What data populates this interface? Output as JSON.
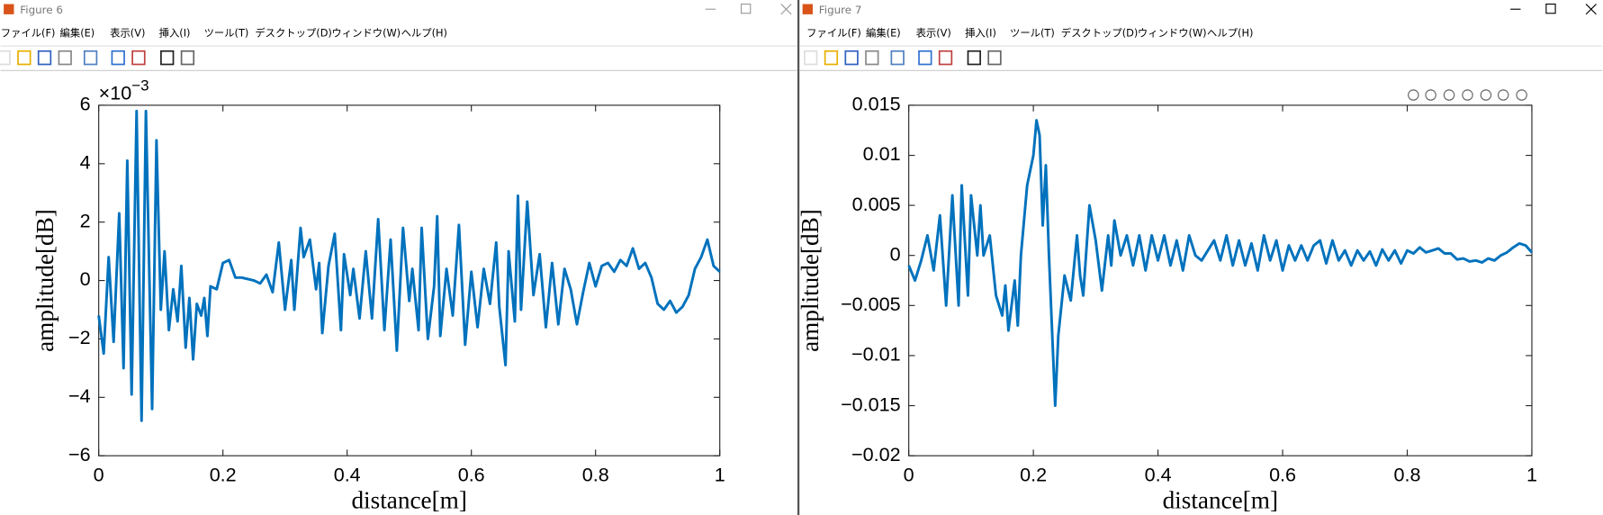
{
  "windows": [
    {
      "title": "Figure 6"
    },
    {
      "title": "Figure 7"
    }
  ],
  "menu": [
    "ファイル(F)",
    "編集(E)",
    "表示(V)",
    "挿入(I)",
    "ツール(T)",
    "デスクトップ(D)",
    "ウィンドウ(W)",
    "ヘルプ(H)"
  ],
  "chart_data": [
    {
      "type": "line",
      "xlabel": "distance[m]",
      "ylabel": "amplitude[dB]",
      "color": "#0072bd",
      "exponent": {
        "base": "×10",
        "power": "−3"
      },
      "xlim": [
        0,
        1
      ],
      "xticks": [
        0,
        0.2,
        0.4,
        0.6,
        0.8,
        1
      ],
      "ylim": [
        -6,
        6
      ],
      "yticks": [
        {
          "value": -6,
          "label": "−6"
        },
        {
          "value": -4,
          "label": "−4"
        },
        {
          "value": -2,
          "label": "−2"
        },
        0,
        2,
        4,
        6
      ],
      "x": [
        0,
        0.008,
        0.016,
        0.024,
        0.033,
        0.04,
        0.046,
        0.053,
        0.061,
        0.069,
        0.076,
        0.086,
        0.093,
        0.1,
        0.106,
        0.113,
        0.12,
        0.127,
        0.133,
        0.14,
        0.146,
        0.152,
        0.158,
        0.165,
        0.17,
        0.175,
        0.18,
        0.19,
        0.2,
        0.21,
        0.22,
        0.23,
        0.25,
        0.26,
        0.27,
        0.28,
        0.29,
        0.3,
        0.31,
        0.315,
        0.325,
        0.33,
        0.34,
        0.35,
        0.355,
        0.36,
        0.37,
        0.38,
        0.39,
        0.395,
        0.405,
        0.41,
        0.42,
        0.43,
        0.44,
        0.45,
        0.46,
        0.47,
        0.48,
        0.49,
        0.5,
        0.505,
        0.515,
        0.52,
        0.53,
        0.54,
        0.545,
        0.55,
        0.56,
        0.57,
        0.58,
        0.59,
        0.6,
        0.61,
        0.62,
        0.63,
        0.64,
        0.645,
        0.655,
        0.66,
        0.67,
        0.675,
        0.68,
        0.69,
        0.7,
        0.71,
        0.72,
        0.73,
        0.74,
        0.75,
        0.76,
        0.77,
        0.78,
        0.79,
        0.8,
        0.81,
        0.82,
        0.83,
        0.84,
        0.85,
        0.86,
        0.87,
        0.88,
        0.89,
        0.9,
        0.91,
        0.92,
        0.93,
        0.94,
        0.95,
        0.96,
        0.97,
        0.98,
        0.99,
        1.0
      ],
      "values": [
        -1.2,
        -2.5,
        0.8,
        -2.1,
        2.3,
        -3.0,
        4.1,
        -3.9,
        5.8,
        -4.8,
        5.8,
        -4.4,
        4.8,
        -1.0,
        1.0,
        -1.7,
        -0.3,
        -1.4,
        0.5,
        -2.3,
        -0.6,
        -2.7,
        -0.8,
        -1.2,
        -0.6,
        -1.9,
        -0.2,
        -0.3,
        0.6,
        0.7,
        0.1,
        0.1,
        0,
        -0.1,
        0.2,
        -0.4,
        1.3,
        -1.0,
        0.7,
        -1.0,
        1.8,
        0.8,
        1.4,
        -0.3,
        0.6,
        -1.8,
        0.5,
        1.6,
        -1.7,
        0.9,
        -0.5,
        0.4,
        -1.3,
        1.0,
        -1.3,
        2.1,
        -1.7,
        1.4,
        -2.4,
        1.8,
        -0.7,
        0.4,
        -1.7,
        1.8,
        -2.0,
        -0.2,
        2.2,
        -1.9,
        0.4,
        -1.2,
        1.9,
        -2.2,
        0.3,
        -1.6,
        0.4,
        -0.8,
        1.3,
        -0.9,
        -2.9,
        1.0,
        -1.4,
        2.9,
        -1.0,
        2.7,
        -0.5,
        0.9,
        -1.6,
        0.6,
        -1.5,
        0.4,
        -0.3,
        -1.5,
        -0.4,
        0.6,
        -0.2,
        0.5,
        0.6,
        0.3,
        0.7,
        0.5,
        1.1,
        0.4,
        0.6,
        0.1,
        -0.8,
        -1.0,
        -0.7,
        -1.1,
        -0.9,
        -0.5,
        0.4,
        0.8,
        1.4,
        0.5,
        0.3
      ]
    },
    {
      "type": "line",
      "xlabel": "distance[m]",
      "ylabel": "amplitude[dB]",
      "color": "#0072bd",
      "xlim": [
        0,
        1
      ],
      "xticks": [
        0,
        0.2,
        0.4,
        0.6,
        0.8,
        1
      ],
      "ylim": [
        -0.02,
        0.015
      ],
      "yticks": [
        {
          "value": -0.02,
          "label": "−0.02"
        },
        {
          "value": -0.015,
          "label": "−0.015"
        },
        {
          "value": -0.01,
          "label": "−0.01"
        },
        {
          "value": -0.005,
          "label": "−0.005"
        },
        0,
        0.005,
        0.01,
        0.015
      ],
      "x": [
        0,
        0.01,
        0.02,
        0.03,
        0.04,
        0.05,
        0.06,
        0.07,
        0.08,
        0.085,
        0.095,
        0.1,
        0.11,
        0.115,
        0.12,
        0.13,
        0.14,
        0.15,
        0.155,
        0.16,
        0.17,
        0.175,
        0.18,
        0.19,
        0.2,
        0.205,
        0.21,
        0.215,
        0.22,
        0.225,
        0.23,
        0.235,
        0.24,
        0.25,
        0.26,
        0.27,
        0.275,
        0.28,
        0.29,
        0.3,
        0.31,
        0.32,
        0.325,
        0.33,
        0.34,
        0.35,
        0.36,
        0.37,
        0.38,
        0.39,
        0.4,
        0.41,
        0.42,
        0.43,
        0.44,
        0.45,
        0.46,
        0.47,
        0.48,
        0.49,
        0.5,
        0.51,
        0.52,
        0.53,
        0.54,
        0.55,
        0.56,
        0.57,
        0.58,
        0.59,
        0.6,
        0.61,
        0.62,
        0.63,
        0.64,
        0.65,
        0.66,
        0.67,
        0.68,
        0.69,
        0.7,
        0.71,
        0.72,
        0.73,
        0.74,
        0.75,
        0.76,
        0.77,
        0.78,
        0.79,
        0.8,
        0.81,
        0.82,
        0.83,
        0.84,
        0.85,
        0.86,
        0.87,
        0.88,
        0.89,
        0.9,
        0.91,
        0.92,
        0.93,
        0.94,
        0.95,
        0.96,
        0.97,
        0.98,
        0.99,
        1.0
      ],
      "values": [
        -0.001,
        -0.0025,
        -0.0005,
        0.002,
        -0.0015,
        0.004,
        -0.005,
        0.006,
        -0.005,
        0.007,
        -0.004,
        0.006,
        0,
        0.005,
        0,
        0.002,
        -0.004,
        -0.006,
        -0.003,
        -0.0075,
        -0.0025,
        -0.007,
        0,
        0.007,
        0.01,
        0.0135,
        0.012,
        0.003,
        0.009,
        0,
        -0.0075,
        -0.015,
        -0.008,
        -0.002,
        -0.0045,
        0.002,
        -0.002,
        -0.004,
        0.005,
        0.0015,
        -0.0035,
        0.002,
        -0.001,
        0.0035,
        0,
        0.002,
        -0.001,
        0.002,
        -0.0015,
        0.002,
        -0.0005,
        0.002,
        -0.001,
        0.0015,
        -0.0015,
        0.002,
        0,
        -0.0005,
        0.0005,
        0.0015,
        -0.0005,
        0.002,
        -0.001,
        0.0015,
        -0.001,
        0.0012,
        -0.0015,
        0.002,
        -0.0005,
        0.0015,
        -0.0015,
        0.001,
        -0.0005,
        0.001,
        -0.0005,
        0.001,
        0.0015,
        -0.0008,
        0.0015,
        -0.0005,
        0.0005,
        -0.001,
        0.0005,
        -0.0005,
        0.0004,
        -0.001,
        0.0006,
        -0.0005,
        0.0005,
        -0.0008,
        0.0005,
        0.0002,
        0.0008,
        0.0003,
        0.0005,
        0.0007,
        0.0002,
        0.0002,
        -0.0004,
        -0.0003,
        -0.0006,
        -0.0005,
        -0.0007,
        -0.0003,
        -0.0005,
        0,
        0.0003,
        0.0008,
        0.0012,
        0.001,
        0.0003
      ]
    }
  ]
}
